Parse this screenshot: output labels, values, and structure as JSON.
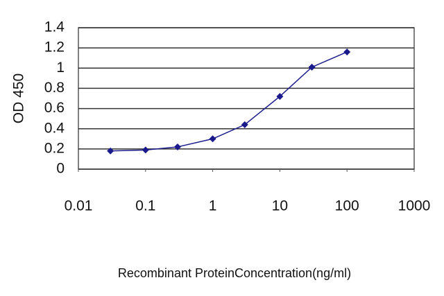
{
  "chart_data": {
    "type": "line",
    "xlabel": "Recombinant ProteinConcentration(ng/ml)",
    "ylabel": "OD 450",
    "x": [
      0.03,
      0.1,
      0.3,
      1,
      3,
      10,
      30,
      100
    ],
    "series": [
      {
        "color": "#1a1a8c",
        "values": [
          0.18,
          0.19,
          0.22,
          0.3,
          0.44,
          0.72,
          1.01,
          1.16
        ]
      }
    ],
    "xscale": "log",
    "xlim": [
      0.01,
      1000
    ],
    "xticks": [
      0.01,
      0.1,
      1,
      10,
      100,
      1000
    ],
    "ylim": [
      0,
      1.4
    ],
    "yticks": [
      0,
      0.2,
      0.4,
      0.6,
      0.8,
      1,
      1.2,
      1.4
    ],
    "grid": true
  }
}
